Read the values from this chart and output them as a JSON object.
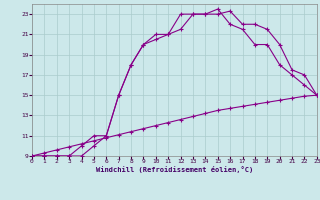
{
  "xlabel": "Windchill (Refroidissement éolien,°C)",
  "xlim": [
    0,
    23
  ],
  "ylim": [
    9,
    24
  ],
  "xticks": [
    0,
    1,
    2,
    3,
    4,
    5,
    6,
    7,
    8,
    9,
    10,
    11,
    12,
    13,
    14,
    15,
    16,
    17,
    18,
    19,
    20,
    21,
    22,
    23
  ],
  "yticks": [
    9,
    11,
    13,
    15,
    17,
    19,
    21,
    23
  ],
  "background_color": "#cce8ea",
  "grid_color": "#aacccc",
  "line_color": "#880088",
  "line1_x": [
    0,
    1,
    2,
    3,
    4,
    5,
    6,
    7,
    8,
    9,
    10,
    11,
    12,
    13,
    14,
    15,
    16,
    17,
    18,
    19,
    20,
    21,
    22,
    23
  ],
  "line1_y": [
    9,
    9.3,
    9.6,
    9.9,
    10.2,
    10.5,
    10.8,
    11.1,
    11.4,
    11.7,
    12.0,
    12.3,
    12.6,
    12.9,
    13.2,
    13.5,
    13.7,
    13.9,
    14.1,
    14.3,
    14.5,
    14.7,
    14.9,
    15.0
  ],
  "line2_x": [
    0,
    1,
    2,
    3,
    4,
    5,
    6,
    7,
    8,
    9,
    10,
    11,
    12,
    13,
    14,
    15,
    16,
    17,
    18,
    19,
    20,
    21,
    22,
    23
  ],
  "line2_y": [
    9,
    9,
    9,
    9,
    10,
    11,
    11,
    15,
    18,
    20,
    21,
    21,
    23,
    23,
    23,
    23.5,
    22,
    21.5,
    20,
    20,
    18,
    17,
    16,
    15
  ],
  "line3_x": [
    0,
    1,
    2,
    3,
    4,
    5,
    6,
    7,
    8,
    9,
    10,
    11,
    12,
    13,
    14,
    15,
    16,
    17,
    18,
    19,
    20,
    21,
    22,
    23
  ],
  "line3_y": [
    9,
    9,
    9,
    9,
    9,
    10,
    11,
    15,
    18,
    20,
    20.5,
    21,
    21.5,
    23,
    23,
    23,
    23.3,
    22,
    22,
    21.5,
    20,
    17.5,
    17,
    15
  ]
}
